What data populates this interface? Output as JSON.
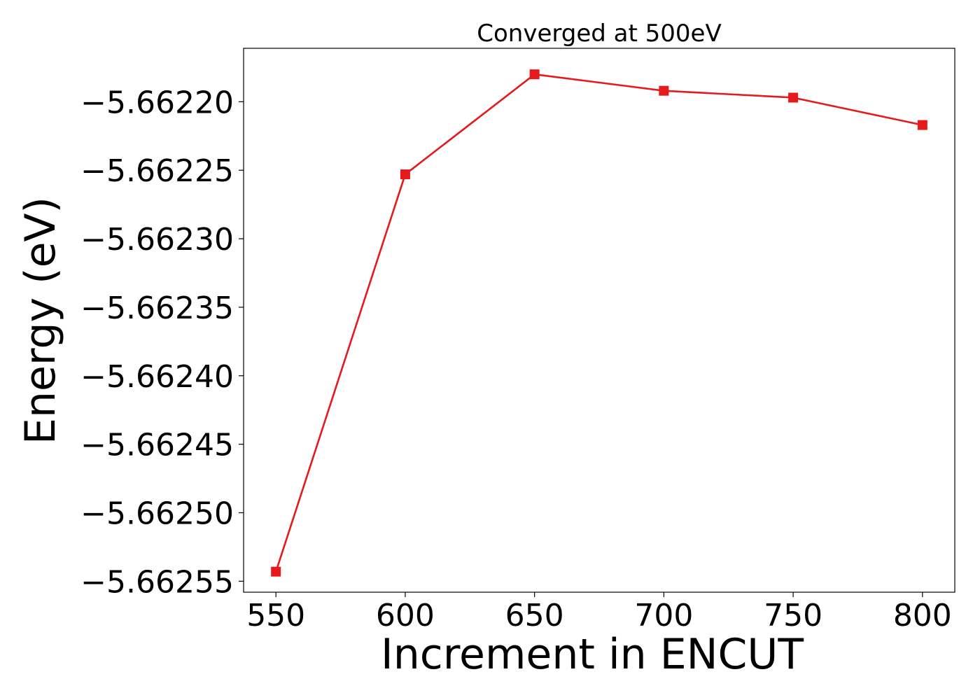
{
  "chart_data": {
    "type": "line",
    "title": "Converged at 500eV",
    "xlabel": "Increment in ENCUT",
    "ylabel": "Energy (eV)",
    "x": [
      550,
      600,
      650,
      700,
      750,
      800
    ],
    "series": [
      {
        "values": [
          -5.662543,
          -5.662253,
          -5.66218,
          -5.662192,
          -5.662197,
          -5.662217
        ],
        "color": "#e41a1c",
        "marker": "square"
      }
    ],
    "xticks": [
      550,
      600,
      650,
      700,
      750,
      800
    ],
    "xtick_labels": [
      "550",
      "600",
      "650",
      "700",
      "750",
      "800"
    ],
    "yticks": [
      -5.6622,
      -5.66225,
      -5.6623,
      -5.66235,
      -5.6624,
      -5.66245,
      -5.6625,
      -5.66255
    ],
    "ytick_labels": [
      "−5.66220",
      "−5.66225",
      "−5.66230",
      "−5.66235",
      "−5.66240",
      "−5.66245",
      "−5.66250",
      "−5.66255"
    ],
    "xlim": [
      537.5,
      812.5
    ],
    "ylim": [
      -5.662558,
      -5.662161
    ],
    "grid": false,
    "legend": "none"
  }
}
